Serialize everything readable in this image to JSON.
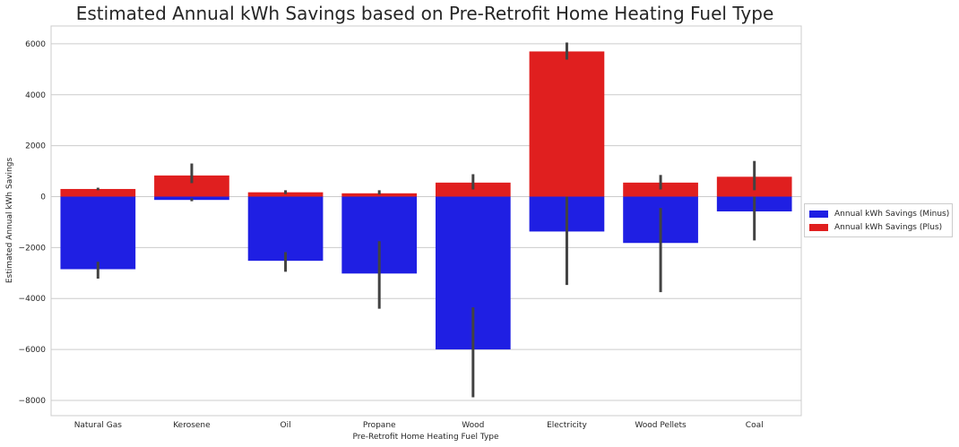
{
  "chart_data": {
    "type": "bar",
    "title": "Estimated Annual kWh Savings based on Pre-Retrofit Home Heating Fuel Type",
    "xlabel": "Pre-Retrofit Home Heating Fuel Type",
    "ylabel": "Estimated Annual kWh Savings",
    "categories": [
      "Natural Gas",
      "Kerosene",
      "Oil",
      "Propane",
      "Wood",
      "Electricity",
      "Wood Pellets",
      "Coal"
    ],
    "ylim": [
      -8600,
      6700
    ],
    "yticks": [
      -8000,
      -6000,
      -4000,
      -2000,
      0,
      2000,
      4000,
      6000
    ],
    "ytick_labels": [
      "−8000",
      "−6000",
      "−4000",
      "−2000",
      "0",
      "2000",
      "4000",
      "6000"
    ],
    "grid": true,
    "legend_position": "right",
    "series": [
      {
        "name": "Annual kWh Savings (Plus)",
        "color": "#e01f1f",
        "values": [
          300,
          830,
          170,
          130,
          550,
          5700,
          550,
          780
        ],
        "ci": [
          [
            250,
            350
          ],
          [
            530,
            1300
          ],
          [
            100,
            250
          ],
          [
            80,
            250
          ],
          [
            280,
            880
          ],
          [
            5380,
            6050
          ],
          [
            280,
            850
          ],
          [
            250,
            1400
          ]
        ]
      },
      {
        "name": "Annual kWh Savings (Minus)",
        "color": "#1f1fe3",
        "values": [
          -2850,
          -130,
          -2520,
          -3020,
          -6000,
          -1370,
          -1820,
          -580
        ],
        "ci": [
          [
            -3220,
            -2560
          ],
          [
            -180,
            -60
          ],
          [
            -2950,
            -2180
          ],
          [
            -4400,
            -1750
          ],
          [
            -7880,
            -4350
          ],
          [
            -3470,
            0
          ],
          [
            -3750,
            -450
          ],
          [
            -1720,
            0
          ]
        ]
      }
    ],
    "legend_order": [
      "Annual kWh Savings (Minus)",
      "Annual kWh Savings (Plus)"
    ]
  }
}
